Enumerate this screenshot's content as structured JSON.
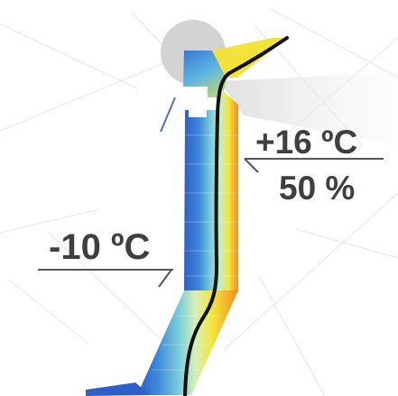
{
  "labels": {
    "exterior_temperature": "-10 ºC",
    "interior_temperature": "+16 ºC",
    "interior_humidity": "50 %"
  },
  "colors": {
    "background": "#ffffff",
    "grid": "#e4e4e4",
    "text": "#3f3f3f",
    "cold": "#2d5fc8",
    "mid_cold": "#4a9ce0",
    "mid": "#82d3d6",
    "warm": "#f2e63c",
    "hot": "#f58a1b",
    "isoline": "#101010"
  }
}
